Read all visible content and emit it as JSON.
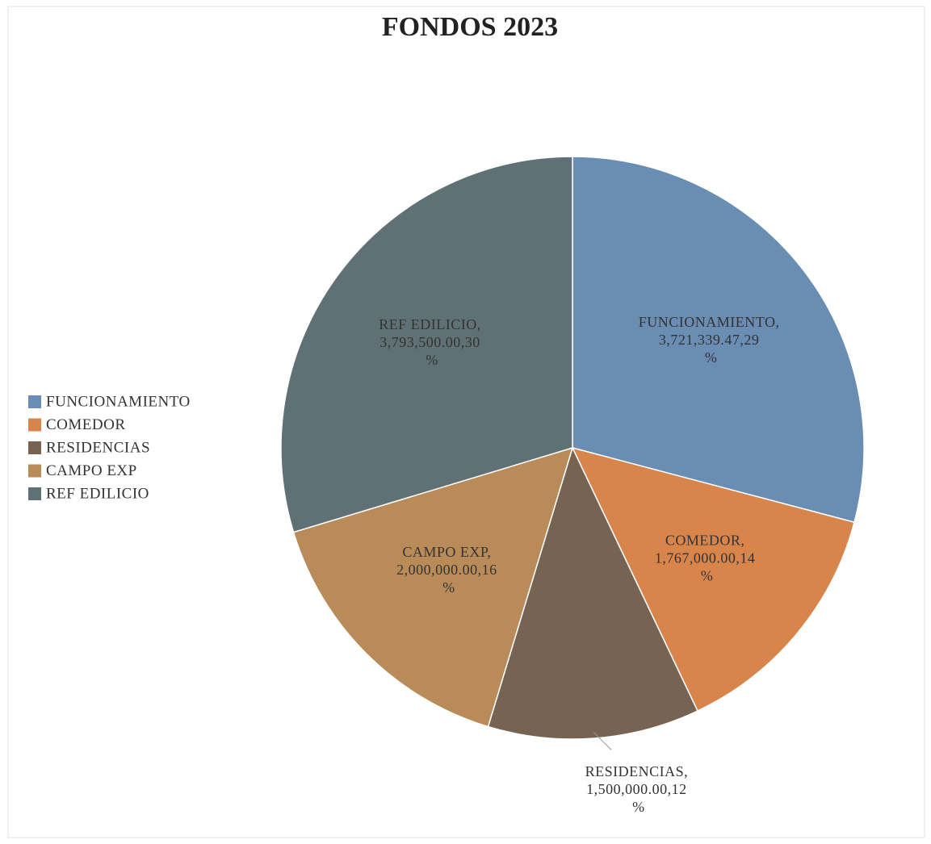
{
  "chart_data": {
    "type": "pie",
    "title": "FONDOS 2023",
    "categories": [
      "FUNCIONAMIENTO",
      "COMEDOR",
      "RESIDENCIAS",
      "CAMPO EXP",
      "REF EDILICIO"
    ],
    "values": [
      3721339.47,
      1767000,
      1500000,
      2000000,
      3793500
    ],
    "value_labels": [
      "FUNCIONAMIENTO, 3,721,339.47,29 %",
      "COMEDOR, 1,767,000.00,14 %",
      "RESIDENCIAS, 1,500,000.00,12 %",
      "CAMPO EXP, 2,000,000.00,16 %",
      "REF EDILICIO, 3,793,500.00,30 %"
    ],
    "colors": [
      "#6a8db3",
      "#d8854b",
      "#776352",
      "#b98b58",
      "#5f7174"
    ],
    "legend": "left"
  }
}
